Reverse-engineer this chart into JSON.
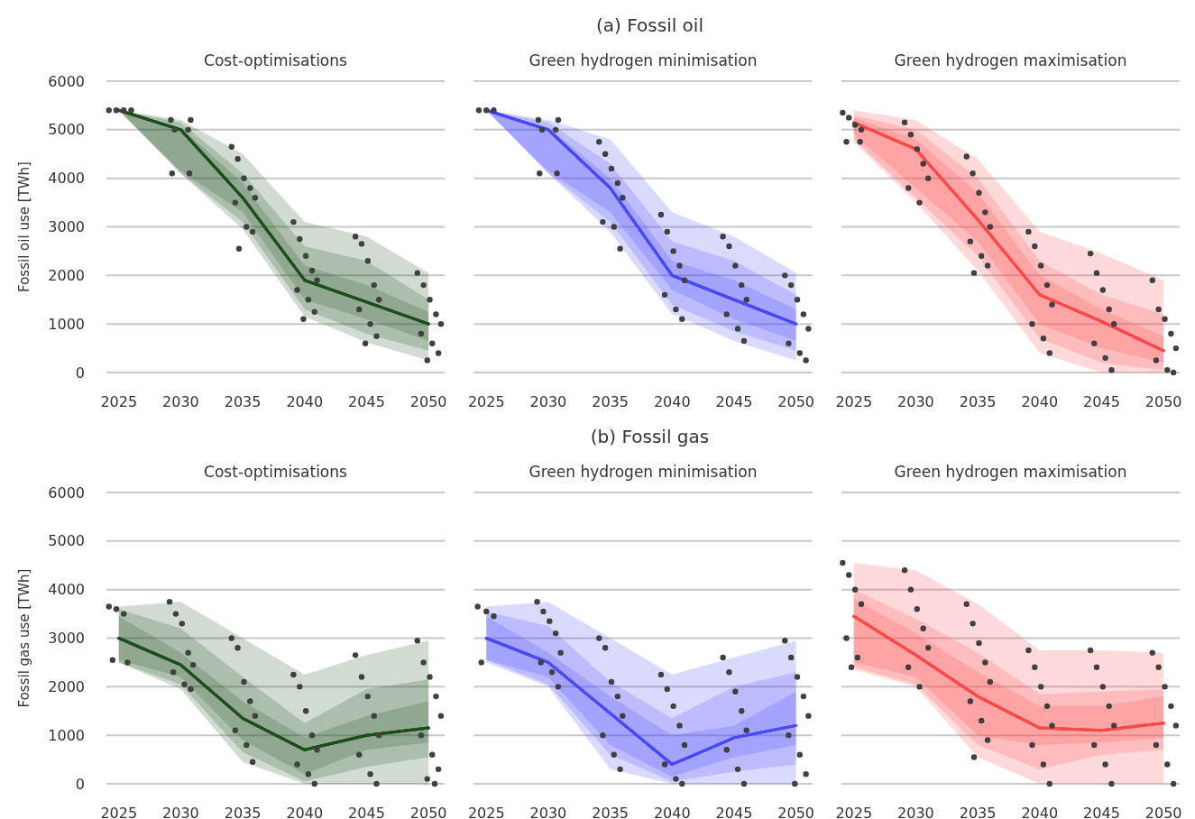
{
  "chart_data": [
    {
      "type": "other",
      "title": "(a) Fossil oil"
    },
    {
      "type": "line",
      "title": "Cost-optimisations",
      "ylabel": "Fossil oil use [TWh]",
      "x": [
        2025,
        2030,
        2035,
        2040,
        2045,
        2050
      ],
      "xlim": [
        2024,
        2051.3
      ],
      "xticks": [
        2025,
        2030,
        2035,
        2040,
        2045,
        2050
      ],
      "ylim": [
        0,
        6000
      ],
      "yticks": [
        0,
        1000,
        2000,
        3000,
        4000,
        5000,
        6000
      ],
      "grid": "y",
      "series": [
        {
          "type": "line",
          "color": "#1a4d1a",
          "values": [
            5400,
            5000,
            3600,
            1900,
            1450,
            1000
          ],
          "upper": [
            5400,
            5200,
            4500,
            3100,
            2800,
            2050
          ],
          "lower": [
            5400,
            4100,
            2950,
            1150,
            620,
            250
          ]
        },
        {
          "type": "line",
          "color": "#1b4e1b",
          "values": [
            5400,
            5000,
            3600,
            1900,
            1450,
            1000
          ],
          "upper": [
            5400,
            5150,
            4100,
            2600,
            2300,
            1500
          ],
          "lower": [
            5400,
            4100,
            3100,
            1300,
            800,
            450
          ]
        },
        {
          "type": "line",
          "color": "#1c4f1c",
          "values": [
            5400,
            5000,
            3600,
            1900,
            1450,
            1000
          ],
          "upper": [
            5400,
            5050,
            3900,
            2200,
            1800,
            1250
          ],
          "lower": [
            5400,
            4150,
            3300,
            1500,
            1100,
            650
          ]
        },
        {
          "type": "scatter",
          "color": "#404040",
          "marker": "circle",
          "x": [
            2024.2,
            2024.8,
            2025.4,
            2026.0,
            2029.2,
            2030.8,
            2029.5,
            2030.6,
            2029.3,
            2030.7,
            2034.1,
            2034.6,
            2035.1,
            2035.6,
            2036.0,
            2034.4,
            2035.3,
            2035.8,
            2034.7,
            2039.1,
            2039.6,
            2040.1,
            2040.6,
            2041.0,
            2039.4,
            2040.3,
            2040.8,
            2039.9,
            2044.1,
            2044.6,
            2045.1,
            2045.6,
            2046.0,
            2044.4,
            2045.3,
            2045.8,
            2044.9,
            2049.1,
            2049.6,
            2050.1,
            2050.6,
            2051.0,
            2049.4,
            2050.3,
            2050.8,
            2049.9
          ],
          "values": [
            5400,
            5400,
            5400,
            5400,
            5200,
            5200,
            5000,
            5000,
            4100,
            4100,
            4650,
            4400,
            4000,
            3800,
            3600,
            3500,
            3000,
            2900,
            2550,
            3100,
            2750,
            2400,
            2100,
            1900,
            1700,
            1500,
            1250,
            1100,
            2800,
            2650,
            2300,
            1800,
            1500,
            1300,
            1000,
            750,
            600,
            2050,
            1800,
            1500,
            1200,
            1000,
            800,
            600,
            400,
            250
          ]
        }
      ]
    },
    {
      "type": "line",
      "title": "Green hydrogen minimisation",
      "x": [
        2025,
        2030,
        2035,
        2040,
        2045,
        2050
      ],
      "xlim": [
        2024,
        2051.3
      ],
      "xticks": [
        2025,
        2030,
        2035,
        2040,
        2045,
        2050
      ],
      "ylim": [
        0,
        6000
      ],
      "yticks": [
        0,
        1000,
        2000,
        3000,
        4000,
        5000,
        6000
      ],
      "grid": "y",
      "tick_labels": "x",
      "series": [
        {
          "type": "line",
          "color": "#4646ff",
          "values": [
            5400,
            5000,
            3800,
            2000,
            1500,
            1000
          ],
          "upper": [
            5400,
            5200,
            4800,
            3300,
            2800,
            2050
          ],
          "lower": [
            5400,
            4100,
            2900,
            1200,
            650,
            250
          ]
        },
        {
          "type": "line",
          "color": "#4747fe",
          "values": [
            5400,
            5000,
            3800,
            2000,
            1500,
            1000
          ],
          "upper": [
            5400,
            5150,
            4300,
            2700,
            2300,
            1600
          ],
          "lower": [
            5400,
            4100,
            3100,
            1400,
            850,
            450
          ]
        },
        {
          "type": "line",
          "color": "#4848fd",
          "values": [
            5400,
            5000,
            3800,
            2000,
            1500,
            1000
          ],
          "upper": [
            5400,
            5050,
            4000,
            2300,
            1900,
            1300
          ],
          "lower": [
            5400,
            4150,
            3300,
            1700,
            1100,
            650
          ]
        },
        {
          "type": "scatter",
          "color": "#404040",
          "marker": "circle",
          "x": [
            2024.4,
            2025.0,
            2025.6,
            2029.2,
            2030.8,
            2029.5,
            2030.6,
            2029.3,
            2030.7,
            2034.1,
            2034.6,
            2035.1,
            2035.6,
            2036.0,
            2034.4,
            2035.3,
            2035.8,
            2039.1,
            2039.6,
            2040.1,
            2040.6,
            2041.0,
            2039.4,
            2040.3,
            2040.8,
            2044.1,
            2044.6,
            2045.1,
            2045.6,
            2046.0,
            2044.4,
            2045.3,
            2045.8,
            2049.1,
            2049.6,
            2050.1,
            2050.6,
            2051.0,
            2049.4,
            2050.3,
            2050.8
          ],
          "values": [
            5400,
            5400,
            5400,
            5200,
            5200,
            5000,
            5000,
            4100,
            4100,
            4750,
            4500,
            4200,
            3900,
            3600,
            3100,
            3000,
            2550,
            3250,
            2900,
            2500,
            2200,
            1900,
            1600,
            1300,
            1100,
            2800,
            2600,
            2200,
            1800,
            1500,
            1200,
            900,
            650,
            2000,
            1800,
            1500,
            1200,
            900,
            600,
            400,
            250
          ]
        }
      ]
    },
    {
      "type": "line",
      "title": "Green hydrogen maximisation",
      "x": [
        2025,
        2030,
        2035,
        2040,
        2045,
        2050
      ],
      "xlim": [
        2024,
        2051.3
      ],
      "xticks": [
        2025,
        2030,
        2035,
        2040,
        2045,
        2050
      ],
      "ylim": [
        0,
        6000
      ],
      "yticks": [
        0,
        1000,
        2000,
        3000,
        4000,
        5000,
        6000
      ],
      "grid": "y",
      "tick_labels": "x",
      "series": [
        {
          "type": "line",
          "color": "#ff4646",
          "values": [
            5150,
            4600,
            3150,
            1600,
            1050,
            450
          ],
          "upper": [
            5400,
            5200,
            4400,
            2900,
            2450,
            1900
          ],
          "lower": [
            4750,
            3500,
            2100,
            400,
            0,
            0
          ]
        },
        {
          "type": "line",
          "color": "#fe4747",
          "values": [
            5150,
            4600,
            3150,
            1600,
            1050,
            450
          ],
          "upper": [
            5300,
            5000,
            4000,
            2300,
            1600,
            1200
          ],
          "lower": [
            4800,
            3600,
            2400,
            700,
            200,
            50
          ]
        },
        {
          "type": "line",
          "color": "#fd4848",
          "values": [
            5150,
            4600,
            3150,
            1600,
            1050,
            450
          ],
          "upper": [
            5250,
            4800,
            3700,
            2000,
            1300,
            750
          ],
          "lower": [
            4900,
            3800,
            2700,
            1000,
            500,
            200
          ]
        },
        {
          "type": "scatter",
          "color": "#404040",
          "marker": "circle",
          "x": [
            2024.1,
            2024.6,
            2025.1,
            2025.6,
            2024.4,
            2025.5,
            2029.1,
            2029.6,
            2030.1,
            2030.6,
            2031.0,
            2029.4,
            2030.3,
            2034.1,
            2034.6,
            2035.1,
            2035.6,
            2036.0,
            2034.4,
            2035.3,
            2035.8,
            2034.7,
            2039.1,
            2039.6,
            2040.1,
            2040.6,
            2041.0,
            2039.4,
            2040.3,
            2040.8,
            2044.1,
            2044.6,
            2045.1,
            2045.6,
            2046.0,
            2044.4,
            2045.3,
            2045.8,
            2049.1,
            2049.6,
            2050.1,
            2050.6,
            2051.0,
            2049.4,
            2050.3,
            2050.8
          ],
          "values": [
            5350,
            5250,
            5100,
            5000,
            4750,
            4750,
            5150,
            4900,
            4600,
            4300,
            4000,
            3800,
            3500,
            4450,
            4100,
            3700,
            3300,
            3000,
            2700,
            2400,
            2200,
            2050,
            2900,
            2600,
            2200,
            1800,
            1400,
            1000,
            700,
            400,
            2450,
            2050,
            1700,
            1300,
            1000,
            600,
            300,
            50,
            1900,
            1300,
            1100,
            800,
            500,
            250,
            50,
            0
          ]
        }
      ]
    },
    {
      "type": "other",
      "title": "(b) Fossil gas"
    },
    {
      "type": "line",
      "title": "Cost-optimisations",
      "ylabel": "Fossil gas use [TWh]",
      "x": [
        2025,
        2030,
        2035,
        2040,
        2045,
        2050
      ],
      "xlim": [
        2024,
        2051.3
      ],
      "xticks": [
        2025,
        2030,
        2035,
        2040,
        2045,
        2050
      ],
      "ylim": [
        0,
        6000
      ],
      "yticks": [
        0,
        1000,
        2000,
        3000,
        4000,
        5000,
        6000
      ],
      "grid": "y",
      "series": [
        {
          "type": "line",
          "color": "#1a4d1a",
          "values": [
            3000,
            2450,
            1350,
            700,
            1000,
            1150
          ],
          "upper": [
            3650,
            3750,
            3000,
            2250,
            2650,
            2950
          ],
          "lower": [
            2500,
            1950,
            450,
            0,
            0,
            0
          ]
        },
        {
          "type": "line",
          "color": "#1b4e1b",
          "values": [
            3000,
            2450,
            1350,
            700,
            1000,
            1150
          ],
          "upper": [
            3600,
            3200,
            2200,
            1250,
            1950,
            2150
          ],
          "lower": [
            2500,
            2050,
            650,
            50,
            350,
            550
          ]
        },
        {
          "type": "line",
          "color": "#1c4f1c",
          "values": [
            3000,
            2450,
            1350,
            700,
            1000,
            1150
          ],
          "upper": [
            3450,
            2700,
            1700,
            950,
            1400,
            1700
          ],
          "lower": [
            2550,
            2200,
            900,
            200,
            700,
            850
          ]
        },
        {
          "type": "scatter",
          "color": "#404040",
          "marker": "circle",
          "x": [
            2024.2,
            2024.8,
            2025.4,
            2024.5,
            2025.7,
            2029.1,
            2029.6,
            2030.1,
            2030.6,
            2031.0,
            2029.4,
            2030.3,
            2030.8,
            2034.1,
            2034.6,
            2035.1,
            2035.6,
            2036.0,
            2034.4,
            2035.3,
            2035.8,
            2039.1,
            2039.6,
            2040.1,
            2040.6,
            2041.0,
            2039.4,
            2040.3,
            2040.8,
            2044.1,
            2044.6,
            2045.1,
            2045.6,
            2046.0,
            2044.4,
            2045.3,
            2045.8,
            2049.1,
            2049.6,
            2050.1,
            2050.6,
            2051.0,
            2049.4,
            2050.3,
            2050.8,
            2049.9,
            2050.5
          ],
          "values": [
            3650,
            3600,
            3500,
            2550,
            2500,
            3750,
            3500,
            3300,
            2700,
            2450,
            2300,
            2050,
            1950,
            3000,
            2800,
            2100,
            1700,
            1400,
            1100,
            800,
            450,
            2250,
            2000,
            1500,
            1000,
            700,
            400,
            200,
            0,
            2650,
            2200,
            1800,
            1400,
            1000,
            600,
            200,
            0,
            2950,
            2500,
            2200,
            1800,
            1400,
            1000,
            600,
            300,
            100,
            0
          ]
        }
      ]
    },
    {
      "type": "line",
      "title": "Green hydrogen minimisation",
      "x": [
        2025,
        2030,
        2035,
        2040,
        2045,
        2050
      ],
      "xlim": [
        2024,
        2051.3
      ],
      "xticks": [
        2025,
        2030,
        2035,
        2040,
        2045,
        2050
      ],
      "ylim": [
        0,
        6000
      ],
      "yticks": [
        0,
        1000,
        2000,
        3000,
        4000,
        5000,
        6000
      ],
      "grid": "y",
      "tick_labels": "x",
      "series": [
        {
          "type": "line",
          "color": "#4646ff",
          "values": [
            3000,
            2500,
            1450,
            400,
            950,
            1200
          ],
          "upper": [
            3650,
            3750,
            3000,
            2250,
            2600,
            2950
          ],
          "lower": [
            2500,
            2000,
            300,
            0,
            0,
            0
          ]
        },
        {
          "type": "line",
          "color": "#4747fe",
          "values": [
            3000,
            2500,
            1450,
            400,
            950,
            1200
          ],
          "upper": [
            3550,
            3250,
            2100,
            1350,
            2000,
            2300
          ],
          "lower": [
            2550,
            2050,
            600,
            50,
            250,
            400
          ]
        },
        {
          "type": "line",
          "color": "#4848fd",
          "values": [
            3000,
            2500,
            1450,
            400,
            950,
            1200
          ],
          "upper": [
            3450,
            2700,
            1800,
            1000,
            1200,
            1900
          ],
          "lower": [
            2550,
            2200,
            800,
            150,
            550,
            800
          ]
        },
        {
          "type": "scatter",
          "color": "#404040",
          "marker": "circle",
          "x": [
            2024.3,
            2025.0,
            2025.6,
            2024.6,
            2029.1,
            2029.6,
            2030.1,
            2030.6,
            2031.0,
            2029.4,
            2030.3,
            2030.8,
            2034.1,
            2034.6,
            2035.1,
            2035.6,
            2036.0,
            2034.4,
            2035.3,
            2035.8,
            2039.1,
            2039.6,
            2040.1,
            2040.6,
            2041.0,
            2039.4,
            2040.3,
            2040.8,
            2044.1,
            2044.6,
            2045.1,
            2045.6,
            2046.0,
            2044.4,
            2045.3,
            2045.8,
            2049.1,
            2049.6,
            2050.1,
            2050.6,
            2051.0,
            2049.4,
            2050.3,
            2050.8,
            2049.9
          ],
          "values": [
            3650,
            3550,
            3450,
            2500,
            3750,
            3550,
            3350,
            3100,
            2700,
            2500,
            2300,
            2000,
            3000,
            2800,
            2100,
            1800,
            1400,
            1000,
            600,
            300,
            2250,
            1950,
            1600,
            1200,
            800,
            400,
            100,
            0,
            2600,
            2300,
            1900,
            1500,
            1100,
            700,
            300,
            0,
            2950,
            2600,
            2200,
            1800,
            1400,
            1000,
            600,
            200,
            0
          ]
        }
      ]
    },
    {
      "type": "line",
      "title": "Green hydrogen maximisation",
      "x": [
        2025,
        2030,
        2035,
        2040,
        2045,
        2050
      ],
      "xlim": [
        2024,
        2051.3
      ],
      "xticks": [
        2025,
        2030,
        2035,
        2040,
        2045,
        2050
      ],
      "ylim": [
        0,
        6000
      ],
      "yticks": [
        0,
        1000,
        2000,
        3000,
        4000,
        5000,
        6000
      ],
      "grid": "y",
      "tick_labels": "x",
      "series": [
        {
          "type": "line",
          "color": "#ff4646",
          "values": [
            3450,
            2650,
            1800,
            1150,
            1100,
            1250
          ],
          "upper": [
            4550,
            4400,
            3700,
            2750,
            2750,
            2700
          ],
          "lower": [
            2350,
            2000,
            550,
            0,
            0,
            0
          ]
        },
        {
          "type": "line",
          "color": "#fe4747",
          "values": [
            3450,
            2650,
            1800,
            1150,
            1100,
            1250
          ],
          "upper": [
            4000,
            3400,
            2700,
            1850,
            1900,
            1950
          ],
          "lower": [
            2400,
            2050,
            800,
            300,
            600,
            700
          ]
        },
        {
          "type": "line",
          "color": "#fd4848",
          "values": [
            3450,
            2650,
            1800,
            1150,
            1100,
            1250
          ],
          "upper": [
            3800,
            3100,
            2300,
            1600,
            1600,
            1800
          ],
          "lower": [
            2500,
            2200,
            1000,
            800,
            850,
            950
          ]
        },
        {
          "type": "scatter",
          "color": "#404040",
          "marker": "circle",
          "x": [
            2024.1,
            2024.6,
            2025.1,
            2025.6,
            2024.4,
            2025.3,
            2024.8,
            2029.1,
            2029.6,
            2030.1,
            2030.6,
            2031.0,
            2029.4,
            2030.3,
            2034.1,
            2034.6,
            2035.1,
            2035.6,
            2036.0,
            2034.4,
            2035.3,
            2035.8,
            2034.7,
            2039.1,
            2039.6,
            2040.1,
            2040.6,
            2041.0,
            2039.4,
            2040.3,
            2040.8,
            2044.1,
            2044.6,
            2045.1,
            2045.6,
            2046.0,
            2044.4,
            2045.3,
            2045.8,
            2049.1,
            2049.6,
            2050.1,
            2050.6,
            2051.0,
            2049.4,
            2050.3,
            2050.8
          ],
          "values": [
            4550,
            4300,
            4000,
            3700,
            3000,
            2600,
            2400,
            4400,
            4000,
            3600,
            3200,
            2800,
            2400,
            2000,
            3700,
            3300,
            2900,
            2500,
            2100,
            1700,
            1300,
            900,
            550,
            2750,
            2400,
            2000,
            1600,
            1200,
            800,
            400,
            0,
            2750,
            2400,
            2000,
            1600,
            1200,
            800,
            400,
            0,
            2700,
            2400,
            2000,
            1600,
            1200,
            800,
            400,
            0
          ]
        }
      ]
    }
  ]
}
